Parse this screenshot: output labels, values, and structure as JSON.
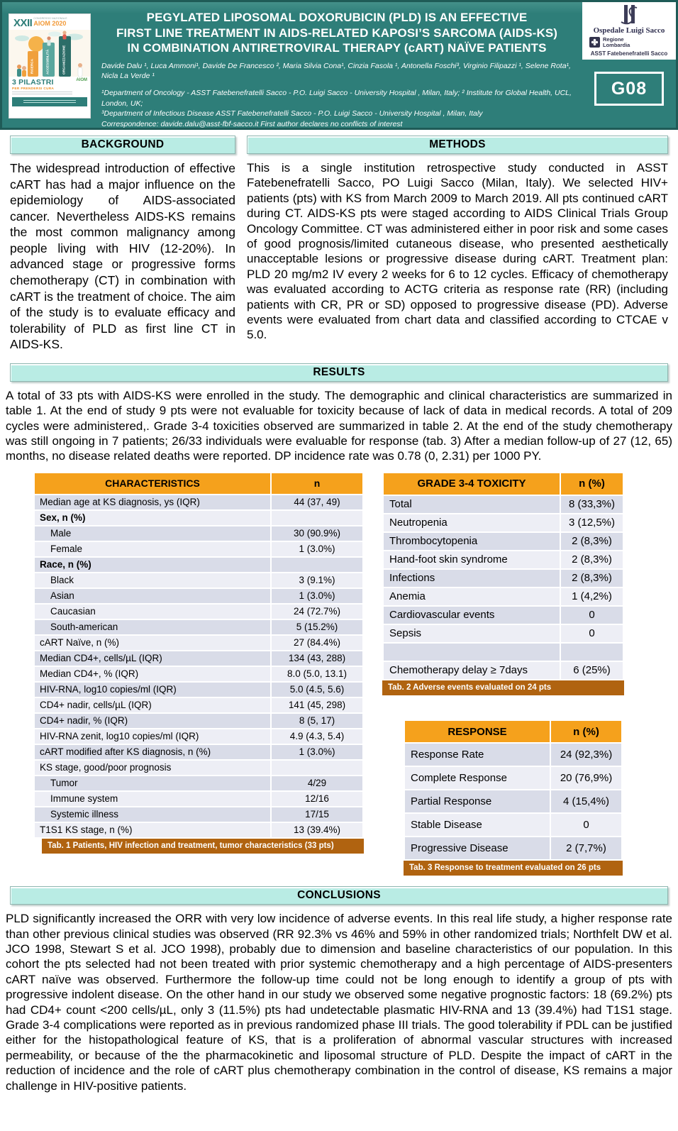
{
  "colors": {
    "band_teal": "#2E7E79",
    "band_border": "#1F5B57",
    "section_bar_mint": "#B9ECE4",
    "table_header_orange": "#F5A11C",
    "caption_brown": "#B06310",
    "row_dark": "#D9DCE8",
    "row_light": "#EDEEF5"
  },
  "header": {
    "badge": "G08",
    "title_lines": [
      "PEGYLATED LIPOSOMAL DOXORUBICIN (PLD) IS AN EFFECTIVE",
      "FIRST LINE TREATMENT IN AIDS-RELATED KAPOSI’S SARCOMA (AIDS-KS)",
      "IN COMBINATION ANTIRETROVIRAL THERAPY (cART) NAÏVE PATIENTS"
    ],
    "authors": "Davide Dalu ¹, Luca Ammoni¹, Davide De Francesco ², Maria Silvia Cona¹, Cinzia Fasola ¹, Antonella Foschi³, Virginio Filipazzi ¹, Selene Rota¹, Nicla La Verde ¹",
    "affiliations": [
      "¹Department of Oncology - ASST Fatebenefratelli Sacco - P.O. Luigi Sacco - University Hospital , Milan, Italy; ² Institute for Global Health, UCL, London, UK;",
      "³Department of Infectious Disease ASST Fatebenefratelli Sacco - P.O. Luigi Sacco - University Hospital , Milan, Italy",
      "Correspondence: davide.dalu@asst-fbf-sacco.it   First author declares no conflicts of interest"
    ],
    "congress": {
      "numeral": "XXII",
      "name": "CONGRESSO NAZIONALE",
      "edition": "AIOM 2020",
      "slogan_title": "3 PILASTRI",
      "slogan_sub": "PER PRENDERSI CURA",
      "aiom": "AIOM",
      "pillars": [
        "RICERCA",
        "ACCESSIBILITÀ",
        "ORGANIZZAZIONE"
      ]
    },
    "logos": {
      "hospital": "Ospedale Luigi Sacco",
      "region_line1": "Regione",
      "region_line2": "Lombardia",
      "asst": "ASST Fatebenefratelli Sacco"
    }
  },
  "sections": {
    "background": {
      "title": "BACKGROUND",
      "text": "The widespread introduction of effective cART has had a major influence on the epidemiology of AIDS-associated cancer. Nevertheless AIDS-KS remains the most common malignancy among people living with HIV (12-20%). In advanced stage or progressive forms chemotherapy (CT) in combination with cART is the treatment of choice. The aim of the study is to evaluate efficacy and tolerability of PLD as first line CT in AIDS-KS."
    },
    "methods": {
      "title": "METHODS",
      "text": "This is a single institution retrospective study conducted in ASST Fatebenefratelli Sacco, PO Luigi Sacco (Milan, Italy). We selected HIV+ patients (pts) with KS from March 2009 to March 2019. All pts continued cART during CT. AIDS-KS pts were staged according to AIDS Clinical Trials Group Oncology Committee. CT was administered either in poor risk and some cases of good prognosis/limited cutaneous disease, who presented aesthetically unacceptable lesions or progressive disease during cART. Treatment plan: PLD 20 mg/m2 IV every 2 weeks for 6 to 12 cycles. Efficacy of chemotherapy was evaluated according to ACTG criteria as response rate (RR) (including patients with CR, PR or SD) opposed to progressive disease (PD). Adverse events were evaluated from chart data and classified according to CTCAE v 5.0."
    },
    "results": {
      "title": "RESULTS",
      "text": "A total of 33 pts with AIDS-KS were enrolled in the study. The demographic and clinical characteristics are summarized in table 1. At the end of study 9 pts were not evaluable for toxicity because of lack of data in medical records. A total of 209 cycles were administered,. Grade 3-4 toxicities observed are summarized in table 2.  At the end of the study chemotherapy was still ongoing in 7 patients;  26/33 individuals were evaluable for response (tab. 3) After a median follow-up of 27 (12, 65) months, no disease related deaths were reported. DP incidence rate was 0.78 (0, 2.31) per 1000 PY."
    },
    "conclusions": {
      "title": "CONCLUSIONS",
      "text": "PLD significantly increased the ORR with very low incidence of adverse events. In this real life study, a higher response rate than other previous clinical studies was observed (RR 92.3% vs 46% and 59% in other randomized trials; Northfelt DW et al. JCO 1998, Stewart S et al. JCO 1998), probably due to dimension and baseline characteristics of our population. In this cohort the pts selected had not been treated with prior systemic chemotherapy and  a high percentage of AIDS-presenters cART naïve was observed. Furthermore the follow-up time could not be long enough to identify a group of pts with progressive indolent disease. On the other hand in our study we observed some negative prognostic factors: 18 (69.2%) pts had CD4+ count <200 cells/µL, only 3 (11.5%) pts had undetectable plasmatic HIV-RNA and 13 (39.4%) had T1S1 stage.  Grade 3-4 complications were reported as in previous randomized phase III trials. The good tolerability  if PDL can be justified either for the histopathological feature of KS, that is a proliferation of abnormal vascular structures with increased permeability, or because of the the pharmacokinetic and liposomal structure of PLD. Despite the impact of cART in the reduction of incidence and the role of cART plus chemotherapy combination in the control of disease, KS remains a major challenge in HIV-positive patients."
    }
  },
  "tables": {
    "characteristics": {
      "headers": [
        "CHARACTERISTICS",
        "n"
      ],
      "rows": [
        {
          "label": "Median age at KS diagnosis, ys (IQR)",
          "value": "44 (37, 49)"
        },
        {
          "label": "Sex, n (%)",
          "value": "",
          "bold": true
        },
        {
          "label": "Male",
          "value": "30 (90.9%)",
          "indent": true
        },
        {
          "label": "Female",
          "value": "1 (3.0%)",
          "indent": true
        },
        {
          "label": "Race, n (%)",
          "value": "",
          "bold": true
        },
        {
          "label": "Black",
          "value": "3 (9.1%)",
          "indent": true
        },
        {
          "label": "Asian",
          "value": "1 (3.0%)",
          "indent": true
        },
        {
          "label": "Caucasian",
          "value": "24 (72.7%)",
          "indent": true
        },
        {
          "label": "South-american",
          "value": "5 (15.2%)",
          "indent": true
        },
        {
          "label": "cART Naïve, n (%)",
          "value": "27 (84.4%)"
        },
        {
          "label": "Median CD4+, cells/µL (IQR)",
          "value": "134 (43, 288)"
        },
        {
          "label": "Median CD4+, % (IQR)",
          "value": "8.0 (5.0, 13.1)"
        },
        {
          "label": "HIV-RNA, log10 copies/ml (IQR)",
          "value": "5.0 (4.5, 5.6)"
        },
        {
          "label": "CD4+ nadir, cells/µL (IQR)",
          "value": "141 (45, 298)"
        },
        {
          "label": "CD4+ nadir, % (IQR)",
          "value": "8 (5, 17)"
        },
        {
          "label": "HIV-RNA zenit, log10 copies/ml (IQR)",
          "value": "4.9 (4.3, 5.4)"
        },
        {
          "label": "cART modified after KS diagnosis, n (%)",
          "value": "1 (3.0%)"
        },
        {
          "label": "KS stage, good/poor prognosis",
          "value": ""
        },
        {
          "label": "Tumor",
          "value": "4/29",
          "indent": true
        },
        {
          "label": "Immune system",
          "value": "12/16",
          "indent": true
        },
        {
          "label": "Systemic illness",
          "value": "17/15",
          "indent": true
        },
        {
          "label": "T1S1 KS stage, n (%)",
          "value": "13 (39.4%)"
        }
      ],
      "caption": "Tab. 1 Patients, HIV infection and treatment, tumor characteristics (33 pts)"
    },
    "toxicity": {
      "headers": [
        "GRADE 3-4 TOXICITY",
        "n (%)"
      ],
      "rows": [
        {
          "label": "Total",
          "value": "8 (33,3%)"
        },
        {
          "label": "Neutropenia",
          "value": "3 (12,5%)"
        },
        {
          "label": "Thrombocytopenia",
          "value": "2 (8,3%)"
        },
        {
          "label": "Hand-foot skin syndrome",
          "value": "2 (8,3%)"
        },
        {
          "label": "Infections",
          "value": "2 (8,3%)"
        },
        {
          "label": "Anemia",
          "value": "1 (4,2%)"
        },
        {
          "label": "Cardiovascular events",
          "value": "0"
        },
        {
          "label": "Sepsis",
          "value": "0"
        },
        {
          "label": "",
          "value": ""
        },
        {
          "label": "Chemotherapy delay ≥ 7days",
          "value": "6 (25%)"
        }
      ],
      "caption": "Tab. 2 Adverse events evaluated on 24 pts"
    },
    "response": {
      "headers": [
        "RESPONSE",
        "n (%)"
      ],
      "rows": [
        {
          "label": "Response Rate",
          "value": "24 (92,3%)"
        },
        {
          "label": "Complete Response",
          "value": "20 (76,9%)"
        },
        {
          "label": "Partial Response",
          "value": "4 (15,4%)"
        },
        {
          "label": "Stable Disease",
          "value": "0"
        },
        {
          "label": "Progressive Disease",
          "value": "2 (7,7%)"
        }
      ],
      "caption": "Tab. 3 Response to treatment evaluated on 26 pts"
    }
  }
}
